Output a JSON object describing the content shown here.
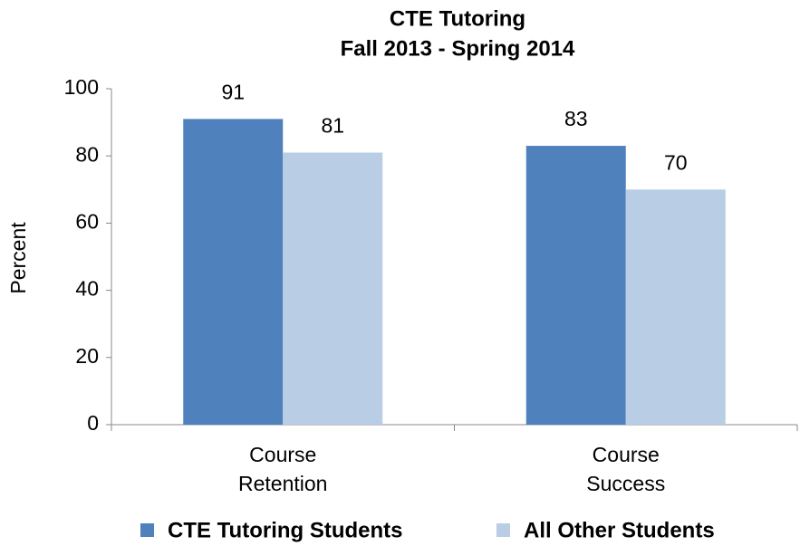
{
  "chart_data": {
    "type": "bar",
    "title": [
      "CTE Tutoring",
      "Fall 2013 - Spring 2014"
    ],
    "y_label": "Percent",
    "categories": [
      [
        "Course",
        "Retention"
      ],
      [
        "Course",
        "Success"
      ]
    ],
    "series": [
      {
        "name": "CTE Tutoring Students",
        "color": "#4f81bd",
        "values": [
          91,
          83
        ]
      },
      {
        "name": "All Other Students",
        "color": "#b9cde5",
        "values": [
          81,
          70
        ]
      }
    ],
    "ylim": [
      0,
      100
    ],
    "yticks": [
      0,
      20,
      40,
      60,
      80,
      100
    ],
    "grid": false,
    "legend": "bottom"
  }
}
